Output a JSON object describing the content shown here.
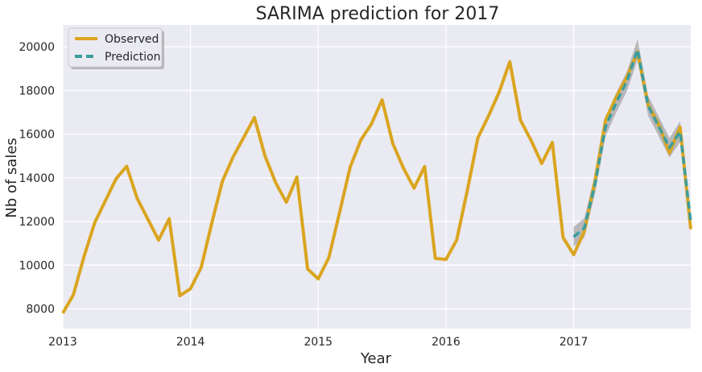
{
  "chart_data": {
    "type": "line",
    "title": "SARIMA prediction for 2017",
    "xlabel": "Year",
    "ylabel": "Nb of sales",
    "xlim": [
      "2013-01",
      "2017-12"
    ],
    "ylim": [
      7100,
      21000
    ],
    "grid": true,
    "legend_position": "top-left",
    "x_ticks": [
      "2013",
      "2014",
      "2015",
      "2016",
      "2017"
    ],
    "y_ticks": [
      8000,
      10000,
      12000,
      14000,
      16000,
      18000,
      20000
    ],
    "series": [
      {
        "name": "Observed",
        "color": "#DAA520",
        "style": "solid",
        "x": [
          "2013-01",
          "2013-02",
          "2013-03",
          "2013-04",
          "2013-05",
          "2013-06",
          "2013-07",
          "2013-08",
          "2013-09",
          "2013-10",
          "2013-11",
          "2013-12",
          "2014-01",
          "2014-02",
          "2014-03",
          "2014-04",
          "2014-05",
          "2014-06",
          "2014-07",
          "2014-08",
          "2014-09",
          "2014-10",
          "2014-11",
          "2014-12",
          "2015-01",
          "2015-02",
          "2015-03",
          "2015-04",
          "2015-05",
          "2015-06",
          "2015-07",
          "2015-08",
          "2015-09",
          "2015-10",
          "2015-11",
          "2015-12",
          "2016-01",
          "2016-02",
          "2016-03",
          "2016-04",
          "2016-05",
          "2016-06",
          "2016-07",
          "2016-08",
          "2016-09",
          "2016-10",
          "2016-11",
          "2016-12",
          "2017-01",
          "2017-02",
          "2017-03",
          "2017-04",
          "2017-05",
          "2017-06",
          "2017-07",
          "2017-08",
          "2017-09",
          "2017-10",
          "2017-11",
          "2017-12"
        ],
        "values": [
          7800,
          8650,
          10400,
          11950,
          12950,
          13950,
          14530,
          13050,
          12100,
          11150,
          12130,
          8600,
          8920,
          9900,
          11930,
          13850,
          14950,
          15850,
          16760,
          15000,
          13780,
          12880,
          14030,
          9830,
          9370,
          10350,
          12400,
          14480,
          15730,
          16470,
          17570,
          15580,
          14450,
          13530,
          14520,
          10310,
          10260,
          11140,
          13410,
          15830,
          16830,
          17920,
          19320,
          16640,
          15710,
          14660,
          15620,
          11270,
          10480,
          11550,
          13850,
          16650,
          17700,
          18620,
          19770,
          17330,
          16430,
          15140,
          16320,
          11650
        ]
      },
      {
        "name": "Prediction",
        "color": "#3a9d9d",
        "style": "dashed",
        "x": [
          "2017-01",
          "2017-02",
          "2017-03",
          "2017-04",
          "2017-05",
          "2017-06",
          "2017-07",
          "2017-08",
          "2017-09",
          "2017-10",
          "2017-11",
          "2017-12"
        ],
        "values": [
          11300,
          11700,
          13700,
          16350,
          17450,
          18420,
          19870,
          17300,
          16350,
          15380,
          16110,
          12000
        ],
        "ci_upper": [
          11750,
          12150,
          14150,
          16800,
          17900,
          18870,
          20350,
          17770,
          16800,
          15830,
          16580,
          12450
        ],
        "ci_lower": [
          10850,
          11250,
          13250,
          15900,
          17000,
          17970,
          19390,
          16850,
          15900,
          14930,
          15640,
          11550
        ]
      }
    ]
  }
}
